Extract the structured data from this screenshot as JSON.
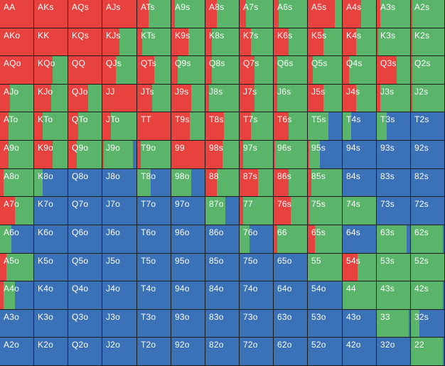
{
  "colors": {
    "raise": "#e8423f",
    "call": "#5ab46a",
    "fold": "#3a71b7",
    "gridline": "#1b1b1b",
    "label": "#ffffff"
  },
  "legend_order": [
    "raise",
    "call",
    "fold"
  ],
  "cells": [
    [
      "AA",
      "AKs",
      "AQs",
      "AJs",
      "ATs",
      "A9s",
      "A8s",
      "A7s",
      "A6s",
      "A5s",
      "A4s",
      "A3s",
      "A2s"
    ],
    [
      "AKo",
      "KK",
      "KQs",
      "KJs",
      "KTs",
      "K9s",
      "K8s",
      "K7s",
      "K6s",
      "K5s",
      "K4s",
      "K3s",
      "K2s"
    ],
    [
      "AQo",
      "KQo",
      "QQ",
      "QJs",
      "QTs",
      "Q9s",
      "Q8s",
      "Q7s",
      "Q6s",
      "Q5s",
      "Q4s",
      "Q3s",
      "Q2s"
    ],
    [
      "AJo",
      "KJo",
      "QJo",
      "JJ",
      "JTs",
      "J9s",
      "J8s",
      "J7s",
      "J6s",
      "J5s",
      "J4s",
      "J3s",
      "J2s"
    ],
    [
      "ATo",
      "KTo",
      "QTo",
      "JTo",
      "TT",
      "T9s",
      "T8s",
      "T7s",
      "T6s",
      "T5s",
      "T4s",
      "T3s",
      "T2s"
    ],
    [
      "A9o",
      "K9o",
      "Q9o",
      "J9o",
      "T9o",
      "99",
      "98s",
      "97s",
      "96s",
      "95s",
      "94s",
      "93s",
      "92s"
    ],
    [
      "A8o",
      "K8o",
      "Q8o",
      "J8o",
      "T8o",
      "98o",
      "88",
      "87s",
      "86s",
      "85s",
      "84s",
      "83s",
      "82s"
    ],
    [
      "A7o",
      "K7o",
      "Q7o",
      "J7o",
      "T7o",
      "97o",
      "87o",
      "77",
      "76s",
      "75s",
      "74s",
      "73s",
      "72s"
    ],
    [
      "A6o",
      "K6o",
      "Q6o",
      "J6o",
      "T6o",
      "96o",
      "86o",
      "76o",
      "66",
      "65s",
      "64s",
      "63s",
      "62s"
    ],
    [
      "A5o",
      "K5o",
      "Q5o",
      "J5o",
      "T5o",
      "95o",
      "85o",
      "75o",
      "65o",
      "55",
      "54s",
      "53s",
      "52s"
    ],
    [
      "A4o",
      "K4o",
      "Q4o",
      "J4o",
      "T4o",
      "94o",
      "84o",
      "74o",
      "64o",
      "54o",
      "44",
      "43s",
      "42s"
    ],
    [
      "A3o",
      "K3o",
      "Q3o",
      "J3o",
      "T3o",
      "93o",
      "83o",
      "73o",
      "63o",
      "53o",
      "43o",
      "33",
      "32s"
    ],
    [
      "A2o",
      "K2o",
      "Q2o",
      "J2o",
      "T2o",
      "92o",
      "82o",
      "72o",
      "62o",
      "52o",
      "42o",
      "32o",
      "22"
    ]
  ],
  "frequencies": [
    [
      [
        1,
        0,
        0
      ],
      [
        1,
        0,
        0
      ],
      [
        1,
        0,
        0
      ],
      [
        1,
        0,
        0
      ],
      [
        0.35,
        0.65,
        0
      ],
      [
        0.1,
        0.9,
        0
      ],
      [
        0.35,
        0.65,
        0
      ],
      [
        0.2,
        0.8,
        0
      ],
      [
        0.15,
        0.85,
        0
      ],
      [
        0.8,
        0.2,
        0
      ],
      [
        0.55,
        0.45,
        0
      ],
      [
        0.1,
        0.9,
        0
      ],
      [
        0.05,
        0.95,
        0
      ]
    ],
    [
      [
        1,
        0,
        0
      ],
      [
        1,
        0,
        0
      ],
      [
        1,
        0,
        0
      ],
      [
        0.5,
        0.5,
        0
      ],
      [
        0.15,
        0.85,
        0
      ],
      [
        0.5,
        0.5,
        0
      ],
      [
        0.2,
        0.8,
        0
      ],
      [
        0.35,
        0.65,
        0
      ],
      [
        0.45,
        0.55,
        0
      ],
      [
        0.45,
        0.55,
        0
      ],
      [
        0.4,
        0.6,
        0
      ],
      [
        0.05,
        0.95,
        0
      ],
      [
        0.05,
        0.95,
        0
      ]
    ],
    [
      [
        1,
        0,
        0
      ],
      [
        0.55,
        0.45,
        0
      ],
      [
        1,
        0,
        0
      ],
      [
        0.4,
        0.6,
        0
      ],
      [
        0.5,
        0.5,
        0
      ],
      [
        0.2,
        0.8,
        0
      ],
      [
        0.2,
        0.8,
        0
      ],
      [
        0.45,
        0.55,
        0
      ],
      [
        0.1,
        0.9,
        0
      ],
      [
        0.15,
        0.85,
        0
      ],
      [
        0.2,
        0.8,
        0
      ],
      [
        0.6,
        0.4,
        0
      ],
      [
        0.05,
        0.95,
        0
      ]
    ],
    [
      [
        0.3,
        0.7,
        0
      ],
      [
        0.5,
        0.5,
        0
      ],
      [
        0.6,
        0.4,
        0
      ],
      [
        1,
        0,
        0
      ],
      [
        0.45,
        0.55,
        0
      ],
      [
        0.6,
        0.4,
        0
      ],
      [
        0.1,
        0.9,
        0
      ],
      [
        0.45,
        0.55,
        0
      ],
      [
        0.1,
        0.9,
        0
      ],
      [
        0.45,
        0.55,
        0
      ],
      [
        0.4,
        0.6,
        0
      ],
      [
        0.1,
        0.9,
        0
      ],
      [
        0.05,
        0.95,
        0
      ]
    ],
    [
      [
        0.25,
        0.75,
        0
      ],
      [
        0.25,
        0.75,
        0
      ],
      [
        0.3,
        0.7,
        0
      ],
      [
        0.25,
        0.75,
        0
      ],
      [
        1,
        0,
        0
      ],
      [
        0.55,
        0.45,
        0
      ],
      [
        0.55,
        0.45,
        0
      ],
      [
        0.35,
        0.65,
        0
      ],
      [
        0.45,
        0.55,
        0
      ],
      [
        0,
        0.6,
        0.4
      ],
      [
        0,
        0.25,
        0.75
      ],
      [
        0,
        0.3,
        0.7
      ],
      [
        0,
        0,
        1
      ]
    ],
    [
      [
        0.25,
        0.75,
        0
      ],
      [
        0.55,
        0.45,
        0
      ],
      [
        0.25,
        0.75,
        0
      ],
      [
        0.05,
        0.85,
        0.1
      ],
      [
        0.1,
        0.9,
        0
      ],
      [
        1,
        0,
        0
      ],
      [
        0.5,
        0.5,
        0
      ],
      [
        0.1,
        0.9,
        0
      ],
      [
        0.05,
        0.95,
        0
      ],
      [
        0.05,
        0.3,
        0.65
      ],
      [
        0,
        0,
        1
      ],
      [
        0,
        0,
        1
      ],
      [
        0,
        0,
        1
      ]
    ],
    [
      [
        0.1,
        0.9,
        0
      ],
      [
        0,
        0.25,
        0.75
      ],
      [
        0,
        0,
        1
      ],
      [
        0,
        0,
        1
      ],
      [
        0,
        0.4,
        0.6
      ],
      [
        0,
        0.6,
        0.4
      ],
      [
        0.35,
        0.65,
        0
      ],
      [
        0.55,
        0.45,
        0
      ],
      [
        0.45,
        0.55,
        0
      ],
      [
        0.1,
        0.9,
        0
      ],
      [
        0,
        0,
        1
      ],
      [
        0,
        0,
        1
      ],
      [
        0,
        0,
        1
      ]
    ],
    [
      [
        0.45,
        0.55,
        0
      ],
      [
        0,
        0,
        1
      ],
      [
        0,
        0,
        1
      ],
      [
        0,
        0,
        1
      ],
      [
        0,
        0,
        1
      ],
      [
        0,
        0,
        1
      ],
      [
        0,
        0.6,
        0.4
      ],
      [
        0.1,
        0.9,
        0
      ],
      [
        0.5,
        0.5,
        0
      ],
      [
        0.05,
        0.95,
        0
      ],
      [
        0,
        1,
        0
      ],
      [
        0,
        0,
        1
      ],
      [
        0,
        0,
        1
      ]
    ],
    [
      [
        0,
        0.35,
        0.65
      ],
      [
        0,
        0,
        1
      ],
      [
        0,
        0,
        1
      ],
      [
        0,
        0,
        1
      ],
      [
        0,
        0,
        1
      ],
      [
        0,
        0,
        1
      ],
      [
        0,
        0,
        1
      ],
      [
        0,
        0.3,
        0.7
      ],
      [
        0.1,
        0.9,
        0
      ],
      [
        0.2,
        0.8,
        0
      ],
      [
        0,
        0,
        1
      ],
      [
        0,
        0.9,
        0.1
      ],
      [
        0,
        0.95,
        0.05
      ]
    ],
    [
      [
        0.2,
        0.8,
        0
      ],
      [
        0,
        0,
        1
      ],
      [
        0,
        0,
        1
      ],
      [
        0,
        0,
        1
      ],
      [
        0,
        0,
        1
      ],
      [
        0,
        0,
        1
      ],
      [
        0,
        0,
        1
      ],
      [
        0,
        0,
        1
      ],
      [
        0,
        0,
        1
      ],
      [
        0,
        1,
        0
      ],
      [
        0.45,
        0.55,
        0
      ],
      [
        0,
        1,
        0
      ],
      [
        0,
        1,
        0
      ]
    ],
    [
      [
        0.1,
        0.35,
        0.55
      ],
      [
        0,
        0,
        1
      ],
      [
        0,
        0,
        1
      ],
      [
        0,
        0,
        1
      ],
      [
        0,
        0,
        1
      ],
      [
        0,
        0,
        1
      ],
      [
        0,
        0,
        1
      ],
      [
        0,
        0,
        1
      ],
      [
        0,
        0,
        1
      ],
      [
        0,
        0,
        1
      ],
      [
        0,
        1,
        0
      ],
      [
        0,
        1,
        0
      ],
      [
        0,
        0.95,
        0.05
      ]
    ],
    [
      [
        0,
        0,
        1
      ],
      [
        0,
        0,
        1
      ],
      [
        0,
        0,
        1
      ],
      [
        0,
        0,
        1
      ],
      [
        0,
        0,
        1
      ],
      [
        0,
        0,
        1
      ],
      [
        0,
        0,
        1
      ],
      [
        0,
        0,
        1
      ],
      [
        0,
        0,
        1
      ],
      [
        0,
        0,
        1
      ],
      [
        0,
        0,
        1
      ],
      [
        0,
        0.95,
        0.05
      ],
      [
        0,
        0.25,
        0.75
      ]
    ],
    [
      [
        0,
        0,
        1
      ],
      [
        0,
        0,
        1
      ],
      [
        0,
        0,
        1
      ],
      [
        0,
        0,
        1
      ],
      [
        0,
        0,
        1
      ],
      [
        0,
        0,
        1
      ],
      [
        0,
        0,
        1
      ],
      [
        0,
        0,
        1
      ],
      [
        0,
        0,
        1
      ],
      [
        0,
        0,
        1
      ],
      [
        0,
        0,
        1
      ],
      [
        0,
        0,
        1
      ],
      [
        0,
        0.95,
        0.05
      ]
    ]
  ]
}
